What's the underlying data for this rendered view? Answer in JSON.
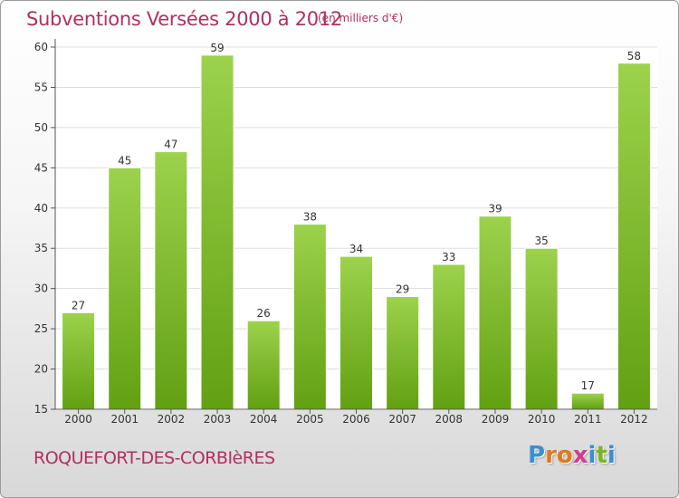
{
  "header": {
    "title": "Subventions Versées 2000 à 2012",
    "subtitle": "(en milliers d'€)"
  },
  "footer": {
    "commune": "ROQUEFORT-DES-CORBIèRES",
    "logo_letters": [
      "P",
      "r",
      "o",
      "x",
      "i",
      "t",
      "i"
    ],
    "logo_colors": [
      "#3a8fd0",
      "#e07a1c",
      "#e07a1c",
      "#d63a8f",
      "#3a8fd0",
      "#7ab51d",
      "#3a8fd0"
    ]
  },
  "colors": {
    "bar_light": "#9cd24c",
    "bar_dark": "#62a012",
    "title": "#b03060",
    "grid": "#dddddd",
    "axis": "#555555"
  },
  "chart_data": {
    "type": "bar",
    "title": "Subventions Versées 2000 à 2012",
    "subtitle": "(en milliers d'€)",
    "categories": [
      "2000",
      "2001",
      "2002",
      "2003",
      "2004",
      "2005",
      "2006",
      "2007",
      "2008",
      "2009",
      "2010",
      "2011",
      "2012"
    ],
    "values": [
      27,
      45,
      47,
      59,
      26,
      38,
      34,
      29,
      33,
      39,
      35,
      17,
      58
    ],
    "ylim": [
      15,
      60
    ],
    "yticks": [
      15,
      20,
      25,
      30,
      35,
      40,
      45,
      50,
      55,
      60
    ],
    "grid": true,
    "xlabel": "",
    "ylabel": ""
  }
}
